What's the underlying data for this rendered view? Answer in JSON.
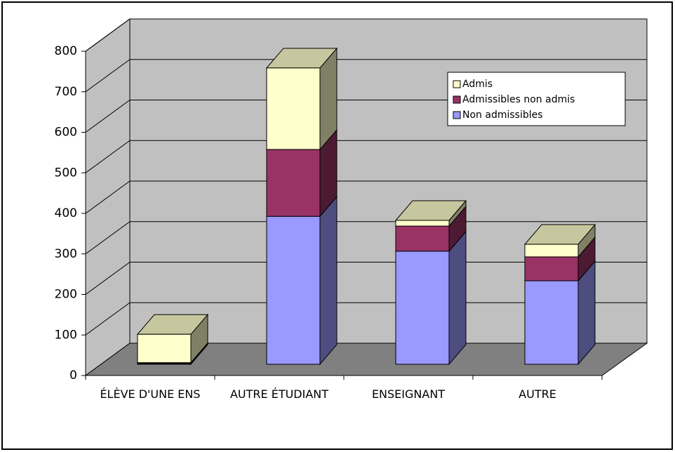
{
  "chart_data": {
    "type": "bar3d_stacked",
    "categories": [
      "ÉLÈVE D'UNE ENS",
      "AUTRE ÉTUDIANT",
      "ENSEIGNANT",
      "AUTRE"
    ],
    "series": [
      {
        "name": "Non admissibles",
        "color": "#9999ff",
        "values": [
          2,
          365,
          279,
          206
        ]
      },
      {
        "name": "Admissibles non admis",
        "color": "#993366",
        "values": [
          2,
          165,
          62,
          59
        ]
      },
      {
        "name": "Admis",
        "color": "#ffffcc",
        "values": [
          70,
          201,
          14,
          31
        ]
      }
    ],
    "ylim": [
      0,
      800
    ],
    "yticks": [
      0,
      100,
      200,
      300,
      400,
      500,
      600,
      700,
      800
    ],
    "grid": true,
    "legend": "upper right"
  }
}
